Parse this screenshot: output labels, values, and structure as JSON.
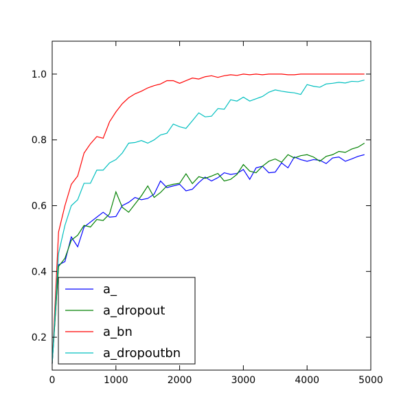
{
  "chart_data": {
    "type": "line",
    "title": "",
    "xlabel": "",
    "ylabel": "",
    "xlim": [
      0,
      5000
    ],
    "ylim": [
      0.1,
      1.1
    ],
    "xticks": [
      0,
      1000,
      2000,
      3000,
      4000,
      5000
    ],
    "yticks": [
      0.2,
      0.4,
      0.6,
      0.8,
      1.0
    ],
    "xtick_labels": [
      "0",
      "1000",
      "2000",
      "3000",
      "4000",
      "5000"
    ],
    "ytick_labels": [
      "0.2",
      "0.4",
      "0.6",
      "0.8",
      "1.0"
    ],
    "grid": false,
    "legend_position": "lower-left",
    "x": [
      0,
      100,
      200,
      300,
      400,
      500,
      600,
      700,
      800,
      900,
      1000,
      1100,
      1200,
      1300,
      1400,
      1500,
      1600,
      1700,
      1800,
      1900,
      2000,
      2100,
      2200,
      2300,
      2400,
      2500,
      2600,
      2700,
      2800,
      2900,
      3000,
      3100,
      3200,
      3300,
      3400,
      3500,
      3600,
      3700,
      3800,
      3900,
      4000,
      4100,
      4200,
      4300,
      4400,
      4500,
      4600,
      4700,
      4800,
      4900
    ],
    "series": [
      {
        "name": "a_",
        "color": "#0000ff",
        "values": [
          0.12,
          0.42,
          0.43,
          0.505,
          0.475,
          0.535,
          0.55,
          0.565,
          0.58,
          0.565,
          0.567,
          0.6,
          0.61,
          0.625,
          0.618,
          0.622,
          0.635,
          0.675,
          0.655,
          0.66,
          0.665,
          0.645,
          0.65,
          0.67,
          0.687,
          0.675,
          0.685,
          0.7,
          0.695,
          0.698,
          0.71,
          0.68,
          0.715,
          0.72,
          0.7,
          0.702,
          0.73,
          0.715,
          0.748,
          0.74,
          0.735,
          0.74,
          0.738,
          0.728,
          0.745,
          0.748,
          0.735,
          0.742,
          0.75,
          0.755
        ]
      },
      {
        "name": "a_dropout",
        "color": "#008000",
        "values": [
          0.12,
          0.415,
          0.44,
          0.495,
          0.51,
          0.54,
          0.535,
          0.558,
          0.555,
          0.575,
          0.642,
          0.595,
          0.58,
          0.605,
          0.63,
          0.66,
          0.625,
          0.64,
          0.66,
          0.665,
          0.668,
          0.697,
          0.667,
          0.688,
          0.683,
          0.69,
          0.698,
          0.675,
          0.68,
          0.695,
          0.725,
          0.705,
          0.7,
          0.72,
          0.735,
          0.742,
          0.732,
          0.755,
          0.745,
          0.752,
          0.755,
          0.748,
          0.735,
          0.75,
          0.755,
          0.765,
          0.762,
          0.772,
          0.778,
          0.79
        ]
      },
      {
        "name": "a_bn",
        "color": "#ff0000",
        "values": [
          0.12,
          0.52,
          0.6,
          0.665,
          0.69,
          0.76,
          0.788,
          0.81,
          0.805,
          0.855,
          0.885,
          0.91,
          0.928,
          0.94,
          0.948,
          0.958,
          0.965,
          0.97,
          0.98,
          0.98,
          0.972,
          0.98,
          0.988,
          0.985,
          0.992,
          0.995,
          0.99,
          0.995,
          0.998,
          0.996,
          1.0,
          0.998,
          1.0,
          0.998,
          1.0,
          1.0,
          1.0,
          0.998,
          0.998,
          1.0,
          1.0,
          1.0,
          1.0,
          1.0,
          1.0,
          1.0,
          1.0,
          1.0,
          1.0,
          1.0
        ]
      },
      {
        "name": "a_dropoutbn",
        "color": "#00bfbf",
        "values": [
          0.12,
          0.455,
          0.54,
          0.6,
          0.618,
          0.668,
          0.668,
          0.708,
          0.708,
          0.73,
          0.74,
          0.76,
          0.79,
          0.792,
          0.798,
          0.79,
          0.8,
          0.815,
          0.82,
          0.848,
          0.84,
          0.835,
          0.858,
          0.882,
          0.87,
          0.872,
          0.895,
          0.893,
          0.922,
          0.918,
          0.93,
          0.918,
          0.925,
          0.932,
          0.945,
          0.952,
          0.948,
          0.945,
          0.943,
          0.938,
          0.968,
          0.963,
          0.96,
          0.97,
          0.972,
          0.975,
          0.973,
          0.978,
          0.977,
          0.982
        ]
      }
    ]
  }
}
